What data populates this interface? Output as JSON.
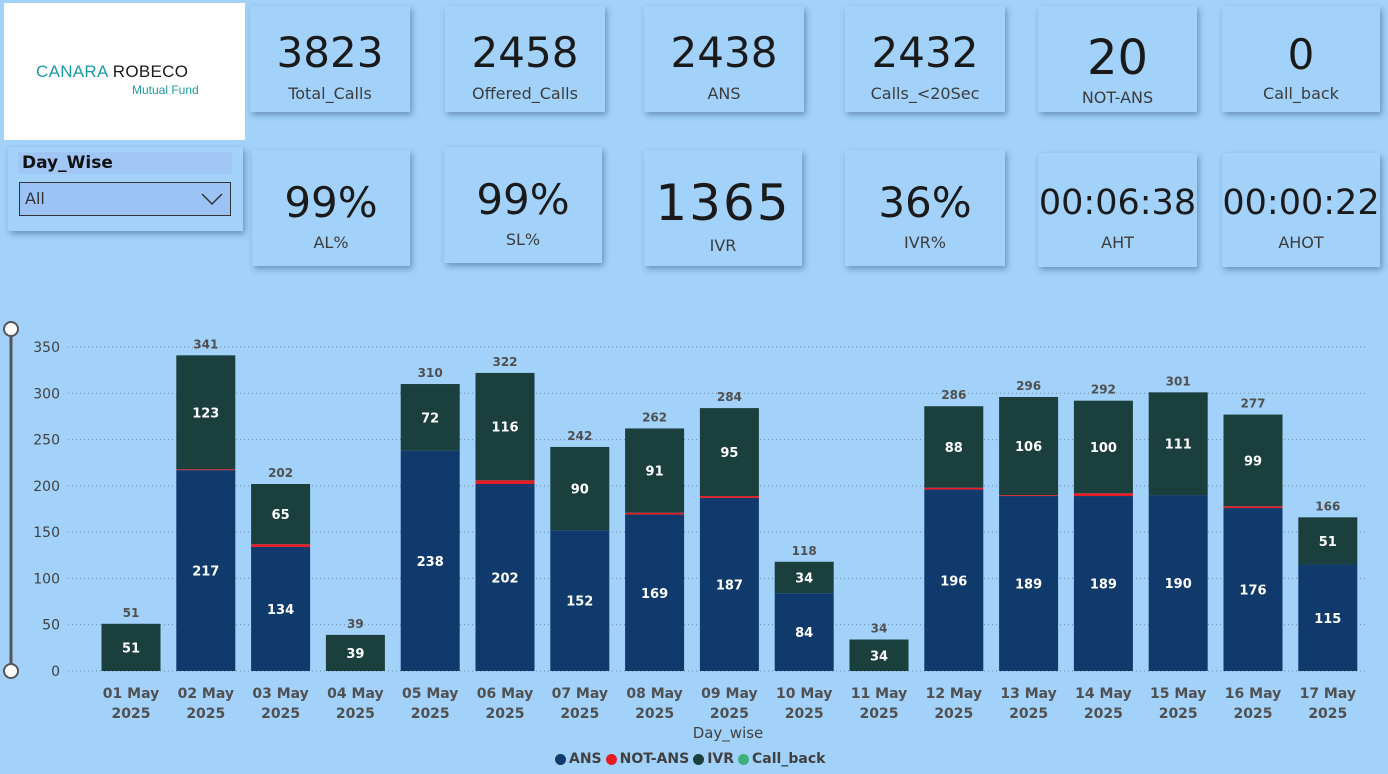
{
  "logo": {
    "part1": "CANARA",
    "part2": "ROBECO",
    "tagline": "Mutual Fund"
  },
  "kpis_row1": [
    {
      "value": "3823",
      "label": "Total_Calls"
    },
    {
      "value": "2458",
      "label": "Offered_Calls"
    },
    {
      "value": "2438",
      "label": "ANS"
    },
    {
      "value": "2432",
      "label": "Calls_<20Sec"
    },
    {
      "value": "20",
      "label": "NOT-ANS"
    },
    {
      "value": "0",
      "label": "Call_back"
    }
  ],
  "kpis_row2": [
    {
      "value": "99%",
      "label": "AL%"
    },
    {
      "value": "99%",
      "label": "SL%"
    },
    {
      "value": "1365",
      "label": "IVR"
    },
    {
      "value": "36%",
      "label": "IVR%"
    },
    {
      "value": "00:06:38",
      "label": "AHT"
    },
    {
      "value": "00:00:22",
      "label": "AHOT"
    }
  ],
  "slicer": {
    "title": "Day_Wise",
    "selected": "All"
  },
  "colors": {
    "ans": "#0f3a6b",
    "not_ans": "#e51c23",
    "ivr": "#1a3f3c",
    "call_back": "#3fae7c"
  },
  "chart_data": {
    "type": "bar",
    "stacked": true,
    "xlabel": "Day_wise",
    "ylabel": "",
    "ylim": [
      0,
      350
    ],
    "yticks": [
      0,
      50,
      100,
      150,
      200,
      250,
      300,
      350
    ],
    "grid": "horizontal dotted",
    "legend_position": "bottom",
    "categories": [
      [
        "01 May",
        "2025"
      ],
      [
        "02 May",
        "2025"
      ],
      [
        "03 May",
        "2025"
      ],
      [
        "04 May",
        "2025"
      ],
      [
        "05 May",
        "2025"
      ],
      [
        "06 May",
        "2025"
      ],
      [
        "07 May",
        "2025"
      ],
      [
        "08 May",
        "2025"
      ],
      [
        "09 May",
        "2025"
      ],
      [
        "10 May",
        "2025"
      ],
      [
        "11 May",
        "2025"
      ],
      [
        "12 May",
        "2025"
      ],
      [
        "13 May",
        "2025"
      ],
      [
        "14 May",
        "2025"
      ],
      [
        "15 May",
        "2025"
      ],
      [
        "16 May",
        "2025"
      ],
      [
        "17 May",
        "2025"
      ]
    ],
    "series": [
      {
        "name": "ANS",
        "color": "#0f3a6b",
        "values": [
          0,
          217,
          134,
          0,
          238,
          202,
          152,
          169,
          187,
          84,
          0,
          196,
          189,
          189,
          190,
          176,
          115
        ]
      },
      {
        "name": "NOT-ANS",
        "color": "#e51c23",
        "values": [
          0,
          1,
          3,
          0,
          0,
          4,
          0,
          2,
          2,
          0,
          0,
          2,
          1,
          3,
          0,
          2,
          0
        ]
      },
      {
        "name": "IVR",
        "color": "#1a3f3c",
        "values": [
          51,
          123,
          65,
          39,
          72,
          116,
          90,
          91,
          95,
          34,
          34,
          88,
          106,
          100,
          111,
          99,
          51
        ]
      },
      {
        "name": "Call_back",
        "color": "#3fae7c",
        "values": [
          0,
          0,
          0,
          0,
          0,
          0,
          0,
          0,
          0,
          0,
          0,
          0,
          0,
          0,
          0,
          0,
          0
        ]
      }
    ],
    "totals": [
      51,
      341,
      202,
      39,
      310,
      322,
      242,
      262,
      284,
      118,
      34,
      286,
      296,
      292,
      301,
      277,
      166
    ]
  }
}
